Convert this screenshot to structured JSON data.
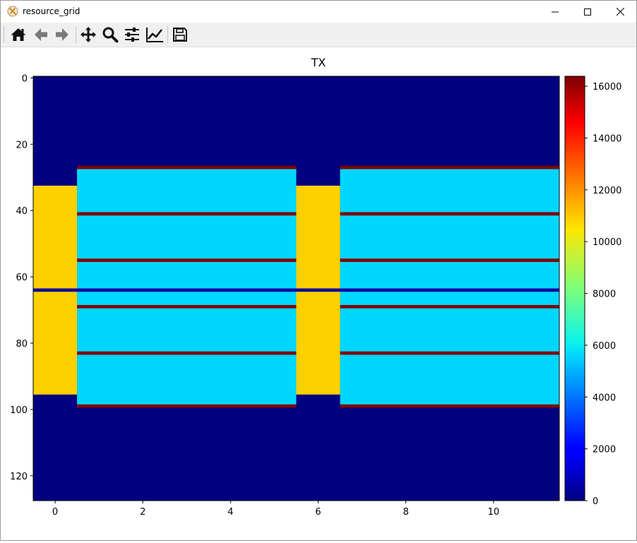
{
  "window": {
    "title": "resource_grid",
    "controls": [
      "minimize",
      "maximize",
      "close"
    ]
  },
  "toolbar": {
    "buttons": [
      {
        "name": "home",
        "icon": "home-icon"
      },
      {
        "name": "back",
        "icon": "arrow-left-icon"
      },
      {
        "name": "forward",
        "icon": "arrow-right-icon"
      },
      {
        "name": "pan",
        "icon": "move-icon"
      },
      {
        "name": "zoom",
        "icon": "magnifier-icon"
      },
      {
        "name": "configure-subplots",
        "icon": "sliders-icon"
      },
      {
        "name": "edit-axis",
        "icon": "line-chart-icon"
      },
      {
        "name": "save",
        "icon": "floppy-disk-icon"
      }
    ]
  },
  "chart_data": {
    "type": "heatmap",
    "title": "TX",
    "xlabel": "",
    "ylabel": "",
    "colormap": "jet",
    "xlim": [
      -0.5,
      11.5
    ],
    "ylim": [
      127.5,
      -0.5
    ],
    "xticks": [
      0,
      2,
      4,
      6,
      8,
      10
    ],
    "yticks": [
      0,
      20,
      40,
      60,
      80,
      100,
      120
    ],
    "colorbar": {
      "ticks": [
        0,
        2000,
        4000,
        6000,
        8000,
        10000,
        12000,
        14000,
        16000
      ],
      "range": [
        0,
        16384
      ]
    },
    "columns": 12,
    "rows": 128,
    "regions": [
      {
        "cols": [
          0,
          0
        ],
        "rows": [
          33,
          95
        ],
        "value": 11000
      },
      {
        "cols": [
          6,
          6
        ],
        "rows": [
          33,
          95
        ],
        "value": 11000
      },
      {
        "cols": [
          1,
          5
        ],
        "rows": [
          28,
          98
        ],
        "value": 5500
      },
      {
        "cols": [
          7,
          11
        ],
        "rows": [
          28,
          98
        ],
        "value": 5500
      },
      {
        "cols": [
          1,
          5
        ],
        "rows": [
          27,
          27
        ],
        "value": 16384
      },
      {
        "cols": [
          7,
          11
        ],
        "rows": [
          27,
          27
        ],
        "value": 16384
      },
      {
        "cols": [
          1,
          5
        ],
        "rows": [
          41,
          41
        ],
        "value": 16384
      },
      {
        "cols": [
          7,
          11
        ],
        "rows": [
          41,
          41
        ],
        "value": 16384
      },
      {
        "cols": [
          1,
          5
        ],
        "rows": [
          55,
          55
        ],
        "value": 16384
      },
      {
        "cols": [
          7,
          11
        ],
        "rows": [
          55,
          55
        ],
        "value": 16384
      },
      {
        "cols": [
          1,
          5
        ],
        "rows": [
          69,
          69
        ],
        "value": 16384
      },
      {
        "cols": [
          7,
          11
        ],
        "rows": [
          69,
          69
        ],
        "value": 16384
      },
      {
        "cols": [
          1,
          5
        ],
        "rows": [
          83,
          83
        ],
        "value": 16384
      },
      {
        "cols": [
          7,
          11
        ],
        "rows": [
          83,
          83
        ],
        "value": 16384
      },
      {
        "cols": [
          1,
          5
        ],
        "rows": [
          99,
          99
        ],
        "value": 16384
      },
      {
        "cols": [
          7,
          11
        ],
        "rows": [
          99,
          99
        ],
        "value": 16384
      },
      {
        "cols": [
          0,
          11
        ],
        "rows": [
          64,
          64
        ],
        "value": 500
      }
    ]
  }
}
